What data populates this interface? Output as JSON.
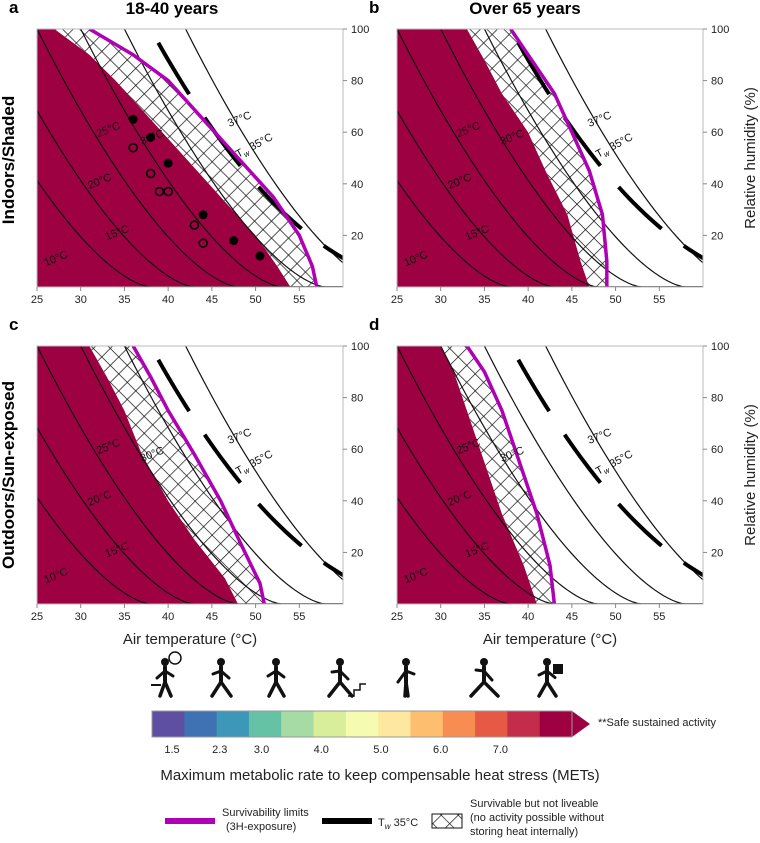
{
  "chart_data": {
    "type": "heatmap",
    "column_titles": [
      "18-40 years",
      "Over 65 years"
    ],
    "row_titles": [
      "Indoors/Shaded",
      "Outdoors/Sun-exposed"
    ],
    "xlabel": "Air temperature (°C)",
    "ylabel": "Relative humidity (%)",
    "xlim": [
      25,
      60
    ],
    "ylim": [
      0,
      100
    ],
    "x_ticks": [
      25,
      30,
      35,
      40,
      45,
      50,
      55
    ],
    "y_ticks": [
      20,
      40,
      60,
      80,
      100
    ],
    "colorbar": {
      "title": "Maximum metabolic rate to keep compensable heat stress (METs)",
      "tick_labels": [
        "1.5",
        "2.3",
        "3.0",
        "4.0",
        "5.0",
        "6.0",
        "7.0"
      ],
      "tick_values": [
        1.5,
        2.3,
        3.0,
        4.0,
        5.0,
        6.0,
        7.0
      ],
      "extend_label": "**Safe sustained activity",
      "colors": [
        "#5e4fa2",
        "#3f72b2",
        "#3c97b8",
        "#66c2a5",
        "#a6dba4",
        "#d8ee9b",
        "#f5fbb0",
        "#fee8a0",
        "#fdbf6f",
        "#f88d52",
        "#e65a45",
        "#c42c4c",
        "#9e0142"
      ],
      "activity_icons": [
        "desk-work-icon",
        "walking-icon",
        "childcare-icon",
        "stair-climbing-icon",
        "dancing-icon",
        "running-icon",
        "carrying-load-icon"
      ]
    },
    "isotherm_labels": [
      "10°C",
      "15°C",
      "20°C",
      "25°C",
      "30°C",
      "37°C"
    ],
    "tw_label": "T",
    "tw_sub": "w",
    "tw_rest": " 35°C",
    "panels": [
      {
        "letter": "a",
        "column": "18-40 years",
        "row": "Indoors/Shaded",
        "survivability_limit": [
          [
            31,
            100
          ],
          [
            36,
            90
          ],
          [
            40,
            80
          ],
          [
            44,
            65
          ],
          [
            48,
            50
          ],
          [
            52,
            35
          ],
          [
            55,
            20
          ],
          [
            56.5,
            8
          ],
          [
            57,
            0
          ]
        ],
        "coloured_edge": [
          [
            27,
            100
          ],
          [
            31,
            90
          ],
          [
            34,
            80
          ],
          [
            38,
            65
          ],
          [
            42,
            50
          ],
          [
            46,
            35
          ],
          [
            50,
            20
          ],
          [
            52.5,
            8
          ],
          [
            54,
            0
          ]
        ],
        "data_points_filled": [
          [
            36,
            65
          ],
          [
            38,
            58
          ],
          [
            40,
            48
          ],
          [
            44,
            28
          ],
          [
            47.5,
            18
          ],
          [
            50.5,
            12
          ]
        ],
        "data_points_open": [
          [
            36,
            54
          ],
          [
            38,
            44
          ],
          [
            39,
            37
          ],
          [
            40,
            37
          ],
          [
            43,
            24
          ],
          [
            44,
            17
          ]
        ]
      },
      {
        "letter": "b",
        "column": "Over 65 years",
        "row": "Indoors/Shaded",
        "survivability_limit": [
          [
            38,
            100
          ],
          [
            40,
            90
          ],
          [
            43,
            75
          ],
          [
            45,
            60
          ],
          [
            47,
            45
          ],
          [
            48.5,
            28
          ],
          [
            49,
            10
          ],
          [
            49,
            0
          ]
        ],
        "coloured_edge": [
          [
            33,
            100
          ],
          [
            35,
            88
          ],
          [
            37,
            75
          ],
          [
            40,
            60
          ],
          [
            42,
            45
          ],
          [
            44.5,
            28
          ],
          [
            46,
            10
          ],
          [
            47,
            0
          ]
        ],
        "data_points_filled": [],
        "data_points_open": []
      },
      {
        "letter": "c",
        "column": "18-40 years",
        "row": "Outdoors/Sun-exposed",
        "survivability_limit": [
          [
            36,
            100
          ],
          [
            38,
            88
          ],
          [
            40,
            75
          ],
          [
            43,
            58
          ],
          [
            46,
            40
          ],
          [
            48.5,
            22
          ],
          [
            50.5,
            8
          ],
          [
            51,
            0
          ]
        ],
        "coloured_edge": [
          [
            31,
            100
          ],
          [
            33,
            88
          ],
          [
            35,
            75
          ],
          [
            37,
            58
          ],
          [
            40,
            40
          ],
          [
            43,
            25
          ],
          [
            46.5,
            10
          ],
          [
            48,
            0
          ]
        ],
        "data_points_filled": [],
        "data_points_open": []
      },
      {
        "letter": "d",
        "column": "Over 65 years",
        "row": "Outdoors/Sun-exposed",
        "survivability_limit": [
          [
            33,
            100
          ],
          [
            35,
            90
          ],
          [
            37,
            75
          ],
          [
            39,
            55
          ],
          [
            41,
            35
          ],
          [
            42.5,
            15
          ],
          [
            43,
            0
          ]
        ],
        "coloured_edge": [
          [
            30,
            100
          ],
          [
            31.5,
            90
          ],
          [
            33,
            75
          ],
          [
            35,
            55
          ],
          [
            37,
            35
          ],
          [
            39.5,
            15
          ],
          [
            41,
            0
          ]
        ],
        "data_points_filled": [],
        "data_points_open": []
      }
    ]
  },
  "legend": {
    "survivability_label": "Survivability limits",
    "survivability_sub": "(3H-exposure)",
    "survivability_color": "#b000b5",
    "tw_label": "T",
    "tw_sub": "w",
    "tw_rest": " 35°C",
    "hatch_label_1": "Survivable but not liveable",
    "hatch_label_2": "(no activity possible without",
    "hatch_label_3": "storing heat internally)"
  }
}
